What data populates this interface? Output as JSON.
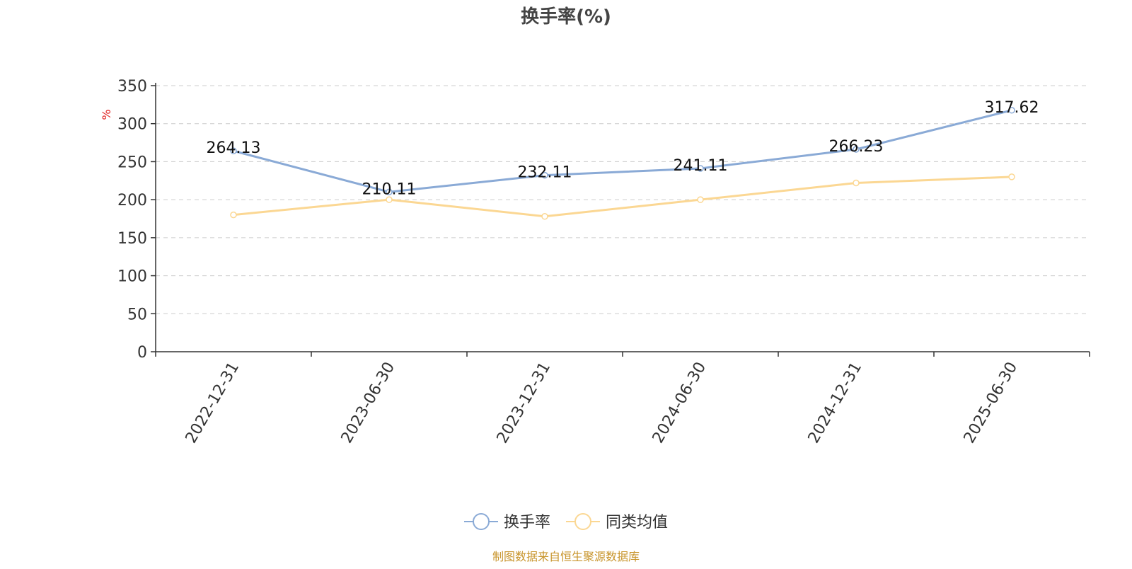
{
  "chart_data": {
    "type": "line",
    "title": "换手率(%)",
    "ylabel": "%",
    "xlabel": "",
    "categories": [
      "2022-12-31",
      "2023-06-30",
      "2023-12-31",
      "2024-06-30",
      "2024-12-31",
      "2025-06-30"
    ],
    "ylim": [
      0,
      350
    ],
    "yticks": [
      0,
      50,
      100,
      150,
      200,
      250,
      300,
      350
    ],
    "grid": true,
    "legend_position": "bottom",
    "series": [
      {
        "name": "换手率",
        "color": "#8aaad6",
        "values": [
          264.13,
          210.11,
          232.11,
          241.11,
          266.23,
          317.62
        ],
        "data_labels": [
          "264.13",
          "210.11",
          "232.11",
          "241.11",
          "266.23",
          "317.62"
        ]
      },
      {
        "name": "同类均值",
        "color": "#fbd793",
        "values": [
          180,
          200,
          178,
          200,
          222,
          230
        ]
      }
    ],
    "source_note": "制图数据来自恒生聚源数据库",
    "colors": {
      "axis": "#333333",
      "grid": "#cccccc",
      "ylabel": "#e02020",
      "source": "#c8952c",
      "title": "#444444"
    }
  }
}
